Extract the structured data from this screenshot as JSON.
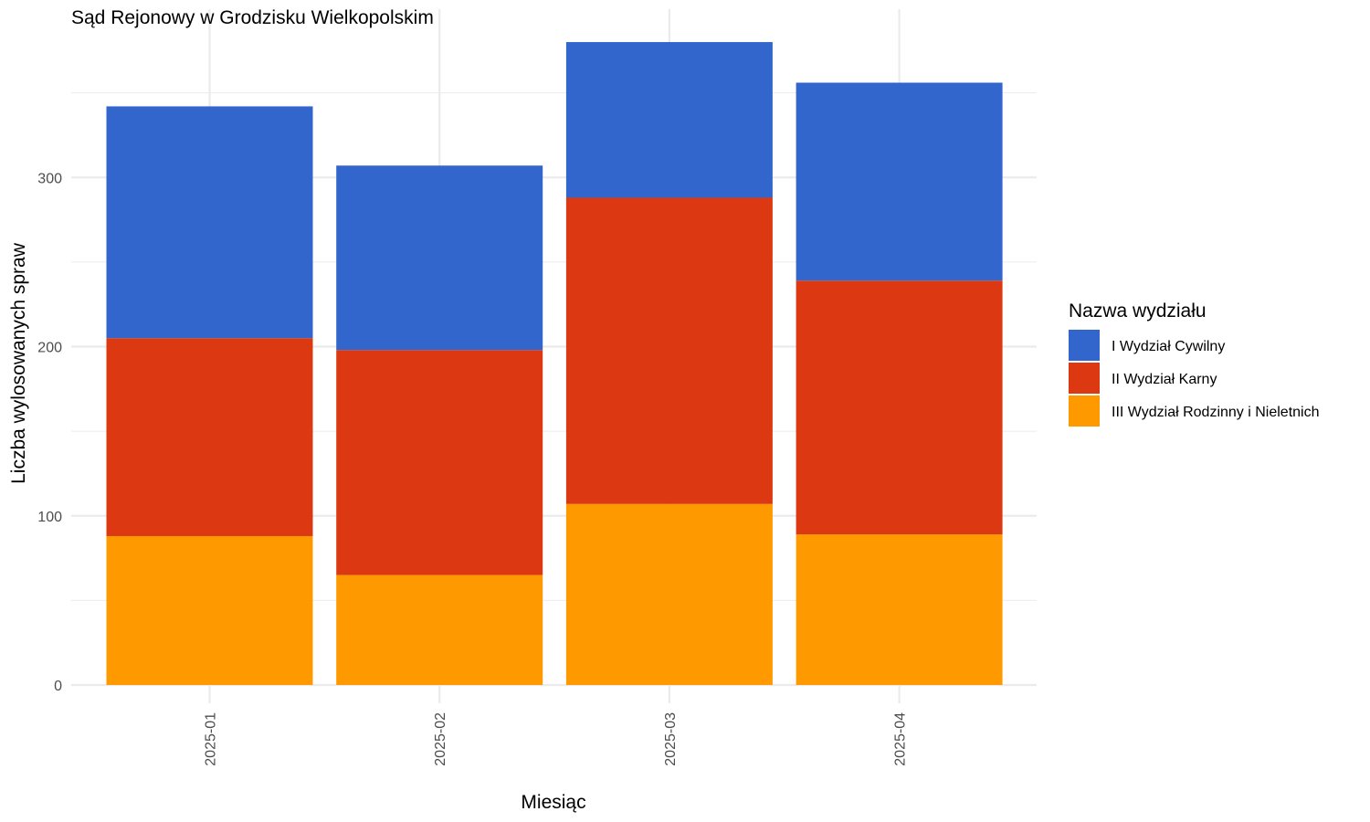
{
  "chart_data": {
    "type": "bar",
    "stacked": true,
    "title": "Sąd Rejonowy w Grodzisku Wielkopolskim",
    "xlabel": "Miesiąc",
    "ylabel": "Liczba wylosowanych spraw",
    "categories": [
      "2025-01",
      "2025-02",
      "2025-03",
      "2025-04"
    ],
    "ylim": [
      0,
      380
    ],
    "y_ticks": [
      0,
      100,
      200,
      300
    ],
    "grid": true,
    "legend": {
      "title": "Nazwa wydziału",
      "position": "right"
    },
    "series": [
      {
        "name": "III Wydział Rodzinny i Nieletnich",
        "color": "#FF9900",
        "values": [
          88,
          65,
          107,
          89
        ]
      },
      {
        "name": "II Wydział Karny",
        "color": "#DC3912",
        "values": [
          117,
          133,
          181,
          150
        ]
      },
      {
        "name": "I Wydział Cywilny",
        "color": "#3366CC",
        "values": [
          137,
          109,
          92,
          117
        ]
      }
    ],
    "legend_order": [
      "I Wydział Cywilny",
      "II Wydział Karny",
      "III Wydział Rodzinny i Nieletnich"
    ]
  }
}
